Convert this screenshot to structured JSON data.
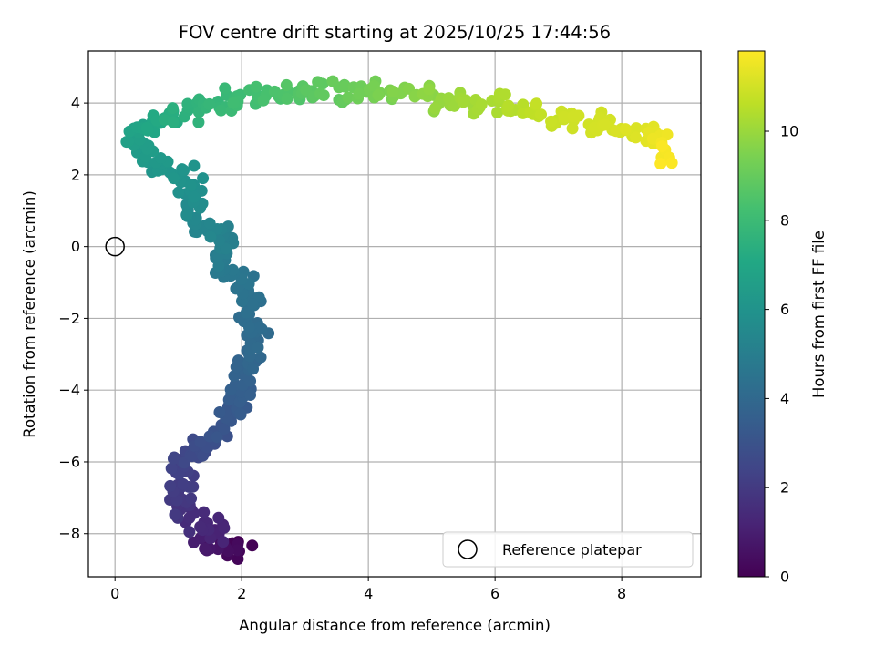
{
  "chart_data": {
    "type": "scatter",
    "title": "FOV centre drift starting at 2025/10/25 17:44:56",
    "xlabel": "Angular distance from reference (arcmin)",
    "ylabel": "Rotation from reference (arcmin)",
    "xlim": [
      -0.42,
      9.25
    ],
    "ylim": [
      -9.2,
      5.45
    ],
    "x_ticks": [
      0,
      2,
      4,
      6,
      8
    ],
    "y_ticks": [
      -8,
      -6,
      -4,
      -2,
      0,
      2,
      4
    ],
    "grid": true,
    "colorbar": {
      "label": "Hours from first FF file",
      "colormap": "viridis",
      "range": [
        0,
        11.8
      ],
      "ticks": [
        0,
        2,
        4,
        6,
        8,
        10
      ]
    },
    "legend": {
      "position": "bottom-right",
      "entries": [
        {
          "label": "Reference platepar",
          "marker": "hollow-circle"
        }
      ]
    },
    "reference_point": {
      "x": 0,
      "y": 0
    },
    "path": [
      {
        "x": 2.05,
        "y": -8.55,
        "t": 0.0
      },
      {
        "x": 1.7,
        "y": -8.2,
        "t": 0.5
      },
      {
        "x": 1.35,
        "y": -8.1,
        "t": 0.9
      },
      {
        "x": 1.65,
        "y": -7.8,
        "t": 1.2
      },
      {
        "x": 1.15,
        "y": -7.6,
        "t": 1.5
      },
      {
        "x": 0.98,
        "y": -7.3,
        "t": 1.8
      },
      {
        "x": 1.05,
        "y": -6.9,
        "t": 2.0
      },
      {
        "x": 1.1,
        "y": -6.3,
        "t": 2.2
      },
      {
        "x": 1.02,
        "y": -5.95,
        "t": 2.4
      },
      {
        "x": 1.3,
        "y": -5.8,
        "t": 2.6
      },
      {
        "x": 1.55,
        "y": -5.3,
        "t": 2.9
      },
      {
        "x": 1.75,
        "y": -4.8,
        "t": 3.2
      },
      {
        "x": 1.95,
        "y": -4.4,
        "t": 3.4
      },
      {
        "x": 1.95,
        "y": -3.8,
        "t": 3.6
      },
      {
        "x": 2.1,
        "y": -3.3,
        "t": 3.8
      },
      {
        "x": 2.15,
        "y": -2.8,
        "t": 4.0
      },
      {
        "x": 2.15,
        "y": -2.0,
        "t": 4.2
      },
      {
        "x": 2.15,
        "y": -1.3,
        "t": 4.4
      },
      {
        "x": 1.9,
        "y": -0.9,
        "t": 4.6
      },
      {
        "x": 1.7,
        "y": -0.5,
        "t": 4.8
      },
      {
        "x": 1.8,
        "y": -0.1,
        "t": 5.0
      },
      {
        "x": 1.6,
        "y": 0.35,
        "t": 5.2
      },
      {
        "x": 1.3,
        "y": 0.7,
        "t": 5.4
      },
      {
        "x": 1.2,
        "y": 1.1,
        "t": 5.6
      },
      {
        "x": 1.3,
        "y": 1.5,
        "t": 5.8
      },
      {
        "x": 1.1,
        "y": 1.9,
        "t": 6.0
      },
      {
        "x": 0.75,
        "y": 2.2,
        "t": 6.2
      },
      {
        "x": 0.45,
        "y": 2.6,
        "t": 6.4
      },
      {
        "x": 0.3,
        "y": 2.95,
        "t": 6.6
      },
      {
        "x": 0.45,
        "y": 3.3,
        "t": 6.9
      },
      {
        "x": 0.75,
        "y": 3.6,
        "t": 7.2
      },
      {
        "x": 1.3,
        "y": 3.85,
        "t": 7.6
      },
      {
        "x": 1.9,
        "y": 4.05,
        "t": 8.0
      },
      {
        "x": 2.5,
        "y": 4.2,
        "t": 8.4
      },
      {
        "x": 3.2,
        "y": 4.35,
        "t": 8.8
      },
      {
        "x": 3.9,
        "y": 4.35,
        "t": 9.2
      },
      {
        "x": 4.6,
        "y": 4.3,
        "t": 9.6
      },
      {
        "x": 5.3,
        "y": 4.05,
        "t": 10.0
      },
      {
        "x": 6.0,
        "y": 3.95,
        "t": 10.3
      },
      {
        "x": 6.5,
        "y": 3.8,
        "t": 10.6
      },
      {
        "x": 7.05,
        "y": 3.6,
        "t": 10.9
      },
      {
        "x": 8.0,
        "y": 3.2,
        "t": 11.1
      },
      {
        "x": 8.35,
        "y": 3.2,
        "t": 11.3
      },
      {
        "x": 8.6,
        "y": 2.9,
        "t": 11.5
      },
      {
        "x": 8.7,
        "y": 2.5,
        "t": 11.8
      }
    ]
  }
}
